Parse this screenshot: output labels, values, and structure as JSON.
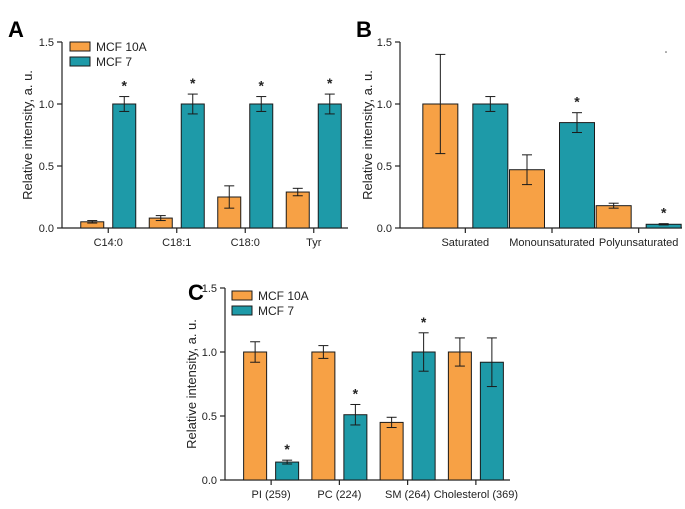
{
  "colors": {
    "mcf10a": "#f7a145",
    "mcf7": "#1e9aa8",
    "axis": "#222222",
    "errbar": "#1a1a1a"
  },
  "chart_data": [
    {
      "panel": "A",
      "type": "bar",
      "ylabel": "Relative intensity, a. u.",
      "ylim": [
        0,
        1.5
      ],
      "yticks": [
        "0.0",
        "0.5",
        "1.0",
        "1.5"
      ],
      "yticks_values": [
        0,
        0.5,
        1.0,
        1.5
      ],
      "categories": [
        "C14:0",
        "C18:1",
        "C18:0",
        "Tyr"
      ],
      "legend": [
        "MCF 10A",
        "MCF 7"
      ],
      "legend_position": "top-left",
      "series": [
        {
          "name": "MCF 10A",
          "values": [
            0.05,
            0.08,
            0.25,
            0.29
          ],
          "errors": [
            0.01,
            0.02,
            0.09,
            0.03
          ],
          "stars": [
            false,
            false,
            false,
            false
          ]
        },
        {
          "name": "MCF 7",
          "values": [
            1.0,
            1.0,
            1.0,
            1.0
          ],
          "errors": [
            0.06,
            0.08,
            0.06,
            0.08
          ],
          "stars": [
            true,
            true,
            true,
            true
          ]
        }
      ],
      "significance_marker": "*"
    },
    {
      "panel": "B",
      "type": "bar",
      "ylabel": "Relative intensity, a. u.",
      "ylim": [
        0,
        1.5
      ],
      "yticks": [
        "0.0",
        "0.5",
        "1.0",
        "1.5"
      ],
      "yticks_values": [
        0,
        0.5,
        1.0,
        1.5
      ],
      "categories": [
        "Saturated",
        "Monounsaturated",
        "Polyunsaturated"
      ],
      "series": [
        {
          "name": "MCF 10A",
          "values": [
            1.0,
            0.47,
            0.18
          ],
          "errors": [
            0.4,
            0.12,
            0.02
          ],
          "stars": [
            false,
            false,
            false
          ]
        },
        {
          "name": "MCF 7",
          "values": [
            1.0,
            0.85,
            0.03
          ],
          "errors": [
            0.06,
            0.08,
            0.005
          ],
          "stars": [
            false,
            true,
            true
          ]
        }
      ],
      "significance_marker": "*"
    },
    {
      "panel": "C",
      "type": "bar",
      "ylabel": "Relative intensity, a. u.",
      "ylim": [
        0,
        1.5
      ],
      "yticks": [
        "0.0",
        "0.5",
        "1.0",
        "1.5"
      ],
      "yticks_values": [
        0,
        0.5,
        1.0,
        1.5
      ],
      "categories": [
        "PI (259)",
        "PC (224)",
        "SM (264)",
        "Cholesterol (369)"
      ],
      "legend": [
        "MCF 10A",
        "MCF 7"
      ],
      "legend_position": "top-left",
      "series": [
        {
          "name": "MCF 10A",
          "values": [
            1.0,
            1.0,
            0.45,
            1.0
          ],
          "errors": [
            0.08,
            0.05,
            0.04,
            0.11
          ],
          "stars": [
            false,
            false,
            false,
            false
          ]
        },
        {
          "name": "MCF 7",
          "values": [
            0.14,
            0.51,
            1.0,
            0.92
          ],
          "errors": [
            0.015,
            0.08,
            0.15,
            0.19
          ],
          "stars": [
            true,
            true,
            true,
            false
          ]
        }
      ],
      "significance_marker": "*"
    }
  ]
}
